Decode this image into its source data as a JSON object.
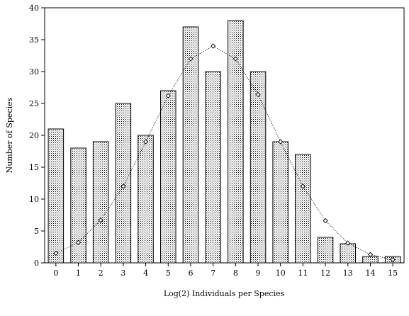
{
  "chart_data": {
    "type": "bar",
    "xlabel": "Log(2) Individuals per Species",
    "ylabel": "Number of Species",
    "ylim": [
      0,
      40
    ],
    "yticks": [
      0,
      5,
      10,
      15,
      20,
      25,
      30,
      35,
      40
    ],
    "categories": [
      "0",
      "1",
      "2",
      "3",
      "4",
      "5",
      "6",
      "7",
      "8",
      "9",
      "10",
      "11",
      "12",
      "13",
      "14",
      "15"
    ],
    "series": [
      {
        "type": "bar",
        "values": [
          21,
          18,
          19,
          25,
          20,
          27,
          37,
          30,
          38,
          30,
          19,
          17,
          4,
          3,
          1,
          1
        ]
      },
      {
        "type": "line",
        "marker": "diamond",
        "values": [
          1.5,
          3.2,
          6.7,
          12,
          19,
          26.2,
          32,
          34,
          32,
          26.4,
          19,
          12,
          6.6,
          3.1,
          1.3,
          0.5
        ]
      }
    ],
    "grid": false,
    "legend": "none"
  }
}
